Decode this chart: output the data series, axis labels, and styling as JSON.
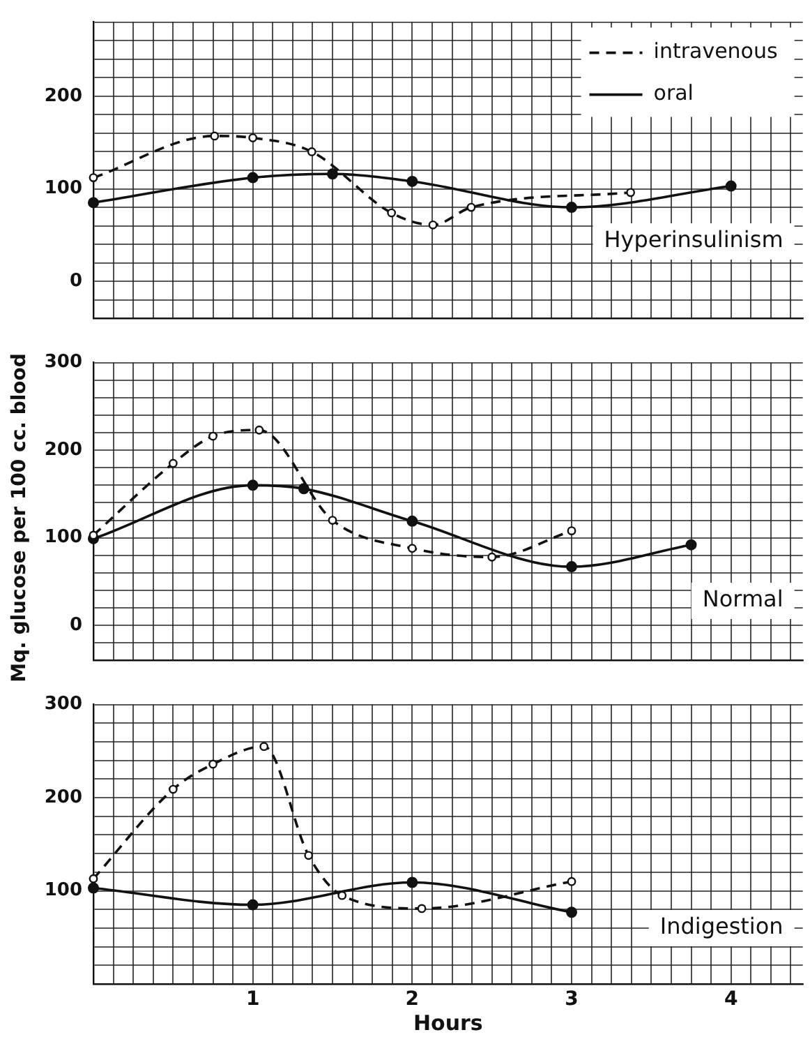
{
  "chart_data": [
    {
      "type": "line",
      "annotations": [
        "Hyperinsulinism"
      ],
      "legend": "top right",
      "marker": "circle",
      "grid": true,
      "tick_labels": "y",
      "xlim": [
        0,
        4.45
      ],
      "ylim": [
        -40,
        280
      ],
      "xticks": [
        {
          "value": 0,
          "label": null
        },
        {
          "value": 0.125,
          "label": null
        },
        {
          "value": 0.25,
          "label": null
        },
        {
          "value": 0.375,
          "label": null
        },
        {
          "value": 0.5,
          "label": null
        },
        {
          "value": 0.625,
          "label": null
        },
        {
          "value": 0.75,
          "label": null
        },
        {
          "value": 0.875,
          "label": null
        },
        1,
        {
          "value": 1.125,
          "label": null
        },
        {
          "value": 1.25,
          "label": null
        },
        {
          "value": 1.375,
          "label": null
        },
        {
          "value": 1.5,
          "label": null
        },
        {
          "value": 1.625,
          "label": null
        },
        {
          "value": 1.75,
          "label": null
        },
        {
          "value": 1.875,
          "label": null
        },
        2,
        {
          "value": 2.125,
          "label": null
        },
        {
          "value": 2.25,
          "label": null
        },
        {
          "value": 2.375,
          "label": null
        },
        {
          "value": 2.5,
          "label": null
        },
        {
          "value": 2.625,
          "label": null
        },
        {
          "value": 2.75,
          "label": null
        },
        {
          "value": 2.875,
          "label": null
        },
        3,
        {
          "value": 3.125,
          "label": null
        },
        {
          "value": 3.25,
          "label": null
        },
        {
          "value": 3.375,
          "label": null
        },
        {
          "value": 3.5,
          "label": null
        },
        {
          "value": 3.625,
          "label": null
        },
        {
          "value": 3.75,
          "label": null
        },
        {
          "value": 3.875,
          "label": null
        },
        4,
        {
          "value": 4.125,
          "label": null
        },
        {
          "value": 4.25,
          "label": null
        },
        {
          "value": 4.375,
          "label": null
        }
      ],
      "yticks": [
        {
          "value": -40,
          "label": null
        },
        {
          "value": -20,
          "label": null
        },
        0,
        {
          "value": 20,
          "label": null
        },
        {
          "value": 40,
          "label": null
        },
        {
          "value": 60,
          "label": null
        },
        {
          "value": 80,
          "label": null
        },
        100,
        {
          "value": 120,
          "label": null
        },
        {
          "value": 140,
          "label": null
        },
        {
          "value": 160,
          "label": null
        },
        {
          "value": 180,
          "label": null
        },
        200,
        {
          "value": 220,
          "label": null
        },
        {
          "value": 240,
          "label": null
        },
        {
          "value": 260,
          "label": null
        },
        {
          "value": 280,
          "label": null
        }
      ],
      "series": [
        {
          "name": "intravenous",
          "color": "#111111",
          "line_style": "dashed",
          "x": [
            0,
            0.76,
            1,
            1.37,
            1.87,
            2.13,
            2.37,
            3.37
          ],
          "values": [
            112,
            157,
            155,
            140,
            74,
            61,
            80,
            96
          ]
        },
        {
          "name": "oral",
          "color": "#111111",
          "line_style": "solid",
          "x": [
            0,
            1,
            1.5,
            2,
            3,
            4
          ],
          "values": [
            85,
            112,
            116,
            108,
            80,
            103
          ]
        }
      ]
    },
    {
      "type": "line",
      "ylabel": "Mq. glucose per 100 cc. blood",
      "annotations": [
        "Normal"
      ],
      "marker": "circle",
      "grid": true,
      "tick_labels": "y",
      "xlim": [
        0,
        4.45
      ],
      "ylim": [
        -40,
        300
      ],
      "xticks": [
        {
          "value": 0,
          "label": null
        },
        {
          "value": 0.125,
          "label": null
        },
        {
          "value": 0.25,
          "label": null
        },
        {
          "value": 0.375,
          "label": null
        },
        {
          "value": 0.5,
          "label": null
        },
        {
          "value": 0.625,
          "label": null
        },
        {
          "value": 0.75,
          "label": null
        },
        {
          "value": 0.875,
          "label": null
        },
        1,
        {
          "value": 1.125,
          "label": null
        },
        {
          "value": 1.25,
          "label": null
        },
        {
          "value": 1.375,
          "label": null
        },
        {
          "value": 1.5,
          "label": null
        },
        {
          "value": 1.625,
          "label": null
        },
        {
          "value": 1.75,
          "label": null
        },
        {
          "value": 1.875,
          "label": null
        },
        2,
        {
          "value": 2.125,
          "label": null
        },
        {
          "value": 2.25,
          "label": null
        },
        {
          "value": 2.375,
          "label": null
        },
        {
          "value": 2.5,
          "label": null
        },
        {
          "value": 2.625,
          "label": null
        },
        {
          "value": 2.75,
          "label": null
        },
        {
          "value": 2.875,
          "label": null
        },
        3,
        {
          "value": 3.125,
          "label": null
        },
        {
          "value": 3.25,
          "label": null
        },
        {
          "value": 3.375,
          "label": null
        },
        {
          "value": 3.5,
          "label": null
        },
        {
          "value": 3.625,
          "label": null
        },
        {
          "value": 3.75,
          "label": null
        },
        {
          "value": 3.875,
          "label": null
        },
        4,
        {
          "value": 4.125,
          "label": null
        },
        {
          "value": 4.25,
          "label": null
        },
        {
          "value": 4.375,
          "label": null
        }
      ],
      "yticks": [
        {
          "value": -40,
          "label": null
        },
        {
          "value": -20,
          "label": null
        },
        0,
        {
          "value": 20,
          "label": null
        },
        {
          "value": 40,
          "label": null
        },
        {
          "value": 60,
          "label": null
        },
        {
          "value": 80,
          "label": null
        },
        100,
        {
          "value": 120,
          "label": null
        },
        {
          "value": 140,
          "label": null
        },
        {
          "value": 160,
          "label": null
        },
        {
          "value": 180,
          "label": null
        },
        200,
        {
          "value": 220,
          "label": null
        },
        {
          "value": 240,
          "label": null
        },
        {
          "value": 260,
          "label": null
        },
        {
          "value": 280,
          "label": null
        },
        300
      ],
      "series": [
        {
          "color": "#111111",
          "line_style": "dashed",
          "x": [
            0,
            0.5,
            0.75,
            1.04,
            1.5,
            2,
            2.5,
            3
          ],
          "values": [
            103,
            185,
            216,
            223,
            120,
            88,
            78,
            108
          ]
        },
        {
          "color": "#111111",
          "line_style": "solid",
          "x": [
            0,
            1,
            1.32,
            2,
            3,
            3.75
          ],
          "values": [
            99,
            160,
            156,
            119,
            67,
            92
          ]
        }
      ]
    },
    {
      "type": "line",
      "xlabel": "Hours",
      "annotations": [
        "Indigestion"
      ],
      "marker": "circle",
      "grid": true,
      "xlim": [
        0,
        4.45
      ],
      "ylim": [
        0,
        300
      ],
      "xticks": [
        {
          "value": 0,
          "label": null
        },
        {
          "value": 0.125,
          "label": null
        },
        {
          "value": 0.25,
          "label": null
        },
        {
          "value": 0.375,
          "label": null
        },
        {
          "value": 0.5,
          "label": null
        },
        {
          "value": 0.625,
          "label": null
        },
        {
          "value": 0.75,
          "label": null
        },
        {
          "value": 0.875,
          "label": null
        },
        1,
        {
          "value": 1.125,
          "label": null
        },
        {
          "value": 1.25,
          "label": null
        },
        {
          "value": 1.375,
          "label": null
        },
        {
          "value": 1.5,
          "label": null
        },
        {
          "value": 1.625,
          "label": null
        },
        {
          "value": 1.75,
          "label": null
        },
        {
          "value": 1.875,
          "label": null
        },
        2,
        {
          "value": 2.125,
          "label": null
        },
        {
          "value": 2.25,
          "label": null
        },
        {
          "value": 2.375,
          "label": null
        },
        {
          "value": 2.5,
          "label": null
        },
        {
          "value": 2.625,
          "label": null
        },
        {
          "value": 2.75,
          "label": null
        },
        {
          "value": 2.875,
          "label": null
        },
        3,
        {
          "value": 3.125,
          "label": null
        },
        {
          "value": 3.25,
          "label": null
        },
        {
          "value": 3.375,
          "label": null
        },
        {
          "value": 3.5,
          "label": null
        },
        {
          "value": 3.625,
          "label": null
        },
        {
          "value": 3.75,
          "label": null
        },
        {
          "value": 3.875,
          "label": null
        },
        4,
        {
          "value": 4.125,
          "label": null
        },
        {
          "value": 4.25,
          "label": null
        },
        {
          "value": 4.375,
          "label": null
        }
      ],
      "yticks": [
        {
          "value": 0,
          "label": null
        },
        {
          "value": 20,
          "label": null
        },
        {
          "value": 40,
          "label": null
        },
        {
          "value": 60,
          "label": null
        },
        {
          "value": 80,
          "label": null
        },
        100,
        {
          "value": 120,
          "label": null
        },
        {
          "value": 140,
          "label": null
        },
        {
          "value": 160,
          "label": null
        },
        {
          "value": 180,
          "label": null
        },
        200,
        {
          "value": 220,
          "label": null
        },
        {
          "value": 240,
          "label": null
        },
        {
          "value": 260,
          "label": null
        },
        {
          "value": 280,
          "label": null
        },
        300
      ],
      "series": [
        {
          "color": "#111111",
          "line_style": "dashed",
          "x": [
            0,
            0.5,
            0.75,
            1.07,
            1.35,
            1.56,
            2.06,
            3
          ],
          "values": [
            113,
            209,
            236,
            255,
            138,
            95,
            81,
            110
          ]
        },
        {
          "color": "#111111",
          "line_style": "solid",
          "x": [
            0,
            1,
            2,
            3
          ],
          "values": [
            103,
            85,
            109,
            77
          ]
        }
      ]
    }
  ]
}
